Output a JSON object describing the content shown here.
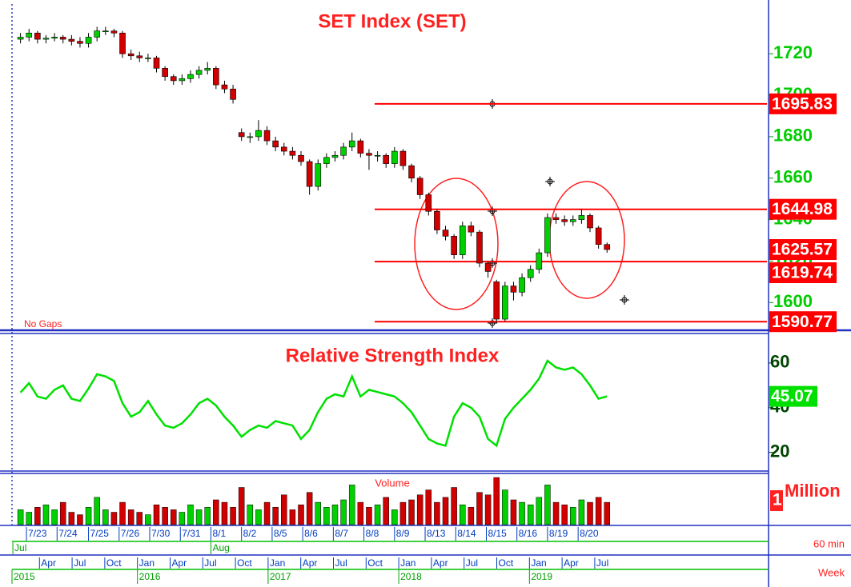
{
  "chart_data": [
    {
      "type": "candlestick",
      "title": "SET Index (SET)",
      "note": "No Gaps",
      "open": [
        1727,
        1728,
        1730,
        1727,
        1727.5,
        1728,
        1727,
        1726,
        1725,
        1728,
        1731,
        1731,
        1730,
        1720,
        1719,
        1718,
        1718,
        1713,
        1709,
        1707,
        1708,
        1710,
        1712,
        1713,
        1705,
        1703,
        1682,
        1680,
        1680,
        1683,
        1678,
        1675,
        1673,
        1671,
        1668,
        1656,
        1667,
        1670,
        1671,
        1675,
        1678,
        1672,
        1671,
        1671,
        1667,
        1673,
        1666,
        1660,
        1652,
        1644,
        1635,
        1632,
        1623,
        1637,
        1634,
        1619,
        1610,
        1592,
        1608,
        1605,
        1612,
        1616,
        1624,
        1641,
        1640,
        1639,
        1640,
        1642,
        1636,
        1628
      ],
      "high": [
        1730,
        1732,
        1731,
        1729,
        1730,
        1729,
        1729,
        1728,
        1730,
        1733,
        1733,
        1732,
        1731,
        1722,
        1721,
        1720,
        1719,
        1714,
        1710,
        1710,
        1712,
        1714,
        1716,
        1714,
        1707,
        1705,
        1684,
        1682,
        1688,
        1685,
        1680,
        1677,
        1675,
        1673,
        1669,
        1669,
        1672,
        1673,
        1677,
        1682,
        1679,
        1674,
        1673,
        1672,
        1675,
        1674,
        1667,
        1661,
        1653,
        1645,
        1637,
        1633,
        1639,
        1639,
        1635,
        1620,
        1611,
        1610,
        1610,
        1614,
        1618,
        1626,
        1643,
        1643,
        1642,
        1642,
        1645,
        1643,
        1637,
        1629
      ],
      "low": [
        1725,
        1726,
        1725,
        1725,
        1726,
        1725,
        1724,
        1723,
        1723,
        1726,
        1729,
        1728,
        1718,
        1717,
        1716,
        1716,
        1711,
        1707,
        1705,
        1705,
        1706,
        1708,
        1710,
        1703,
        1701,
        1696,
        1678,
        1677,
        1678,
        1676,
        1673,
        1671,
        1669,
        1666,
        1652,
        1654,
        1665,
        1668,
        1669,
        1673,
        1670,
        1664,
        1668,
        1665,
        1665,
        1664,
        1658,
        1650,
        1642,
        1633,
        1630,
        1621,
        1621,
        1632,
        1617,
        1612,
        1590,
        1591,
        1601,
        1603,
        1610,
        1614,
        1622,
        1638,
        1637,
        1637,
        1638,
        1634,
        1626,
        1624
      ],
      "close": [
        1728,
        1730,
        1727,
        1727.5,
        1728,
        1727,
        1726,
        1725,
        1728,
        1731,
        1731,
        1730,
        1720,
        1719,
        1718,
        1718,
        1713,
        1709,
        1707,
        1708,
        1710,
        1712,
        1713,
        1705,
        1703,
        1698,
        1680,
        1680,
        1683,
        1678,
        1675,
        1673,
        1671,
        1668,
        1656,
        1667,
        1670,
        1671,
        1675,
        1678,
        1672,
        1671,
        1671,
        1667,
        1673,
        1666,
        1660,
        1652,
        1644,
        1635,
        1632,
        1623,
        1637,
        1634,
        1619,
        1615,
        1592,
        1608,
        1605,
        1612,
        1616,
        1624,
        1641,
        1640,
        1639,
        1640,
        1642,
        1636,
        1628,
        1625.57
      ],
      "up_color": "#00d000",
      "down_color": "#d00000",
      "level_color": "#ff0000",
      "levels": [
        1695.83,
        1644.98,
        1619.74,
        1590.77
      ],
      "ylim": [
        1587,
        1744
      ],
      "yticks": [
        1600,
        1620,
        1640,
        1660,
        1680,
        1700,
        1720
      ]
    },
    {
      "type": "line",
      "title": "Relative Strength Index",
      "color": "#00e000",
      "values": [
        46.8,
        51,
        45,
        44,
        48,
        50,
        44,
        43,
        48.6,
        55,
        54,
        52,
        42,
        36,
        38,
        43,
        37,
        32,
        31,
        33,
        37,
        42,
        44,
        41,
        36,
        32,
        27,
        30,
        32,
        31,
        34,
        33,
        32,
        26,
        30,
        38,
        44,
        46,
        45,
        54,
        45,
        48,
        47,
        46,
        45,
        42,
        38,
        32,
        26,
        24,
        23,
        36,
        42,
        40,
        36,
        26,
        23,
        35,
        40,
        44,
        48,
        53,
        61,
        58,
        57,
        58,
        55,
        50,
        44,
        45.07
      ],
      "ylim": [
        12,
        72.5
      ],
      "yticks": [
        20,
        40,
        60
      ]
    },
    {
      "type": "bar",
      "title": "Volume",
      "unit_label": "Million",
      "values": [
        0.6,
        0.5,
        0.7,
        0.8,
        0.6,
        0.9,
        0.5,
        0.4,
        0.7,
        1.1,
        0.6,
        0.5,
        0.9,
        0.6,
        0.5,
        0.4,
        0.8,
        0.7,
        0.6,
        0.5,
        0.8,
        0.6,
        0.7,
        1.0,
        0.9,
        0.7,
        1.5,
        0.8,
        0.6,
        0.9,
        0.7,
        1.2,
        0.6,
        0.8,
        1.3,
        0.9,
        0.7,
        0.8,
        1.0,
        1.6,
        0.9,
        0.7,
        0.8,
        1.1,
        0.6,
        0.9,
        1.0,
        1.2,
        1.4,
        0.9,
        1.1,
        1.5,
        0.8,
        0.7,
        1.3,
        1.2,
        1.9,
        1.4,
        1.0,
        0.9,
        0.8,
        1.1,
        1.6,
        0.9,
        0.8,
        0.7,
        1.0,
        0.9,
        1.1,
        0.9
      ],
      "ylim": [
        0,
        2
      ],
      "yticks": [
        1
      ]
    }
  ],
  "timeline": {
    "xlim": [
      -1,
      88
    ],
    "day_ticks": [
      {
        "value": 0.7,
        "label": "7/23"
      },
      {
        "value": 4.3,
        "label": "7/24"
      },
      {
        "value": 8,
        "label": "7/25"
      },
      {
        "value": 11.6,
        "label": "7/26"
      },
      {
        "value": 15.2,
        "label": "7/30"
      },
      {
        "value": 18.8,
        "label": "7/31"
      },
      {
        "value": 22.4,
        "label": "8/1"
      },
      {
        "value": 26,
        "label": "8/2"
      },
      {
        "value": 29.6,
        "label": "8/5"
      },
      {
        "value": 33.2,
        "label": "8/6"
      },
      {
        "value": 36.8,
        "label": "8/7"
      },
      {
        "value": 40.4,
        "label": "8/8"
      },
      {
        "value": 44,
        "label": "8/9"
      },
      {
        "value": 47.6,
        "label": "8/13"
      },
      {
        "value": 51.2,
        "label": "8/14"
      },
      {
        "value": 54.8,
        "label": "8/15"
      },
      {
        "value": 58.4,
        "label": "8/16"
      },
      {
        "value": 62,
        "label": "8/19"
      },
      {
        "value": 65.6,
        "label": "8/20"
      }
    ],
    "month_ticks": [
      {
        "value": -0.9,
        "label": "Jul"
      },
      {
        "value": 22.4,
        "label": "Aug"
      }
    ],
    "period_label": "60 min",
    "week_xlim": [
      2015.04,
      2020.83
    ],
    "week_month_ticks": [
      {
        "value": 2015.25,
        "label": "Apr"
      },
      {
        "value": 2015.5,
        "label": "Jul"
      },
      {
        "value": 2015.75,
        "label": "Oct"
      },
      {
        "value": 2016,
        "label": "Jan"
      },
      {
        "value": 2016.25,
        "label": "Apr"
      },
      {
        "value": 2016.5,
        "label": "Jul"
      },
      {
        "value": 2016.75,
        "label": "Oct"
      },
      {
        "value": 2017,
        "label": "Jan"
      },
      {
        "value": 2017.25,
        "label": "Apr"
      },
      {
        "value": 2017.5,
        "label": "Jul"
      },
      {
        "value": 2017.75,
        "label": "Oct"
      },
      {
        "value": 2018,
        "label": "Jan"
      },
      {
        "value": 2018.25,
        "label": "Apr"
      },
      {
        "value": 2018.5,
        "label": "Jul"
      },
      {
        "value": 2018.75,
        "label": "Oct"
      },
      {
        "value": 2019,
        "label": "Jan"
      },
      {
        "value": 2019.25,
        "label": "Apr"
      },
      {
        "value": 2019.5,
        "label": "Jul"
      }
    ],
    "year_ticks": [
      {
        "value": 2015.04,
        "label": "2015"
      },
      2016,
      2017,
      2018,
      2019
    ],
    "week_label": "Week"
  }
}
